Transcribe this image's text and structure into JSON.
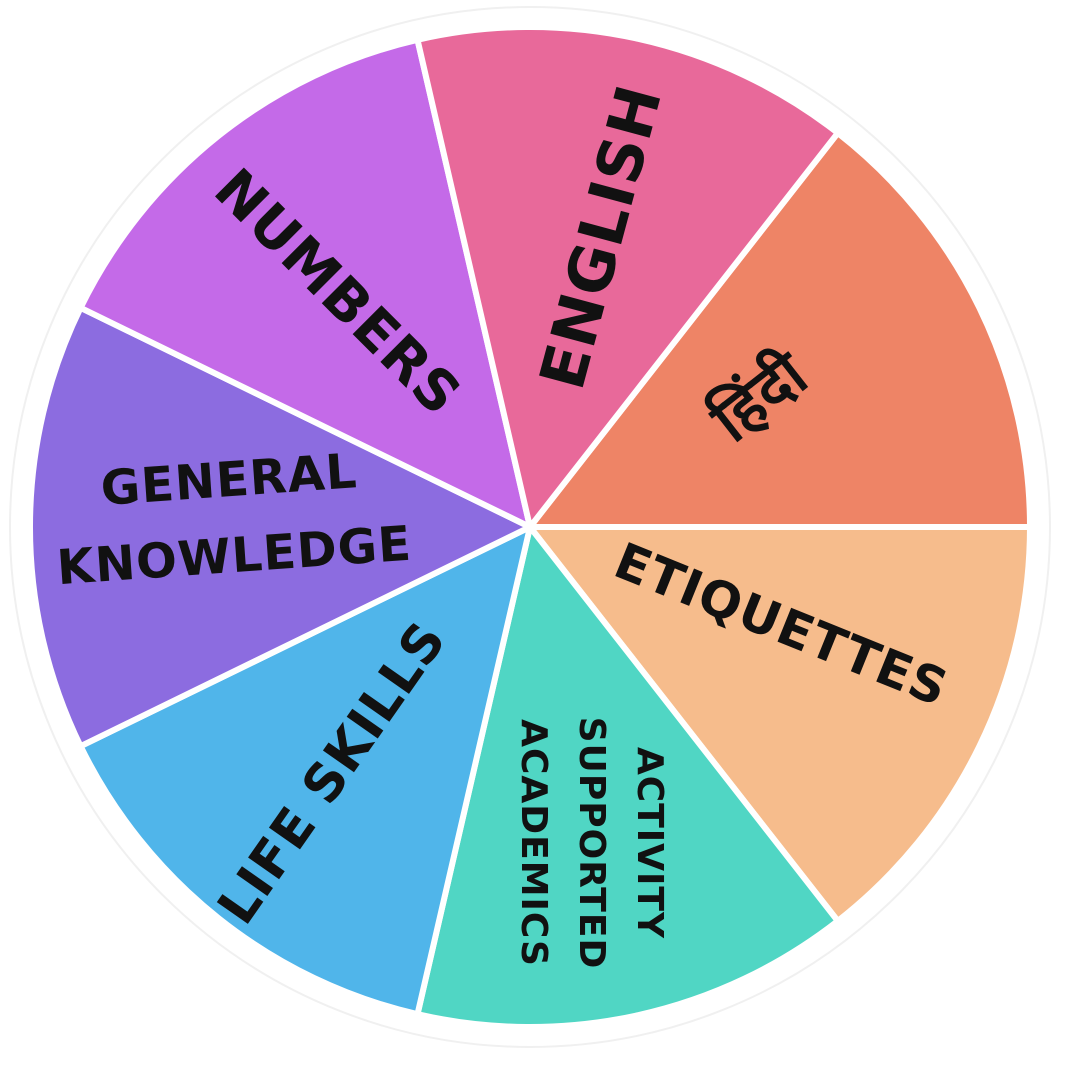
{
  "wheel": {
    "segments": [
      {
        "id": "hindi",
        "label": "हिंदी",
        "color": "#EE8466"
      },
      {
        "id": "etiquettes",
        "label": "ETIQUETTES",
        "color": "#F6BC8C"
      },
      {
        "id": "activity",
        "lines": [
          "ACTIVITY",
          "SUPPORTED",
          "ACADEMICS"
        ],
        "color": "#50D6C4"
      },
      {
        "id": "life-skills",
        "label": "LIFE SKILLS",
        "color": "#50B5EA"
      },
      {
        "id": "general-knowledge",
        "lines": [
          "GENERAL",
          "KNOWLEDGE"
        ],
        "color": "#8C6CE0"
      },
      {
        "id": "numbers",
        "label": "NUMBERS",
        "color": "#C46AE8"
      },
      {
        "id": "english",
        "label": "ENGLISH",
        "color": "#E8699A"
      }
    ]
  }
}
